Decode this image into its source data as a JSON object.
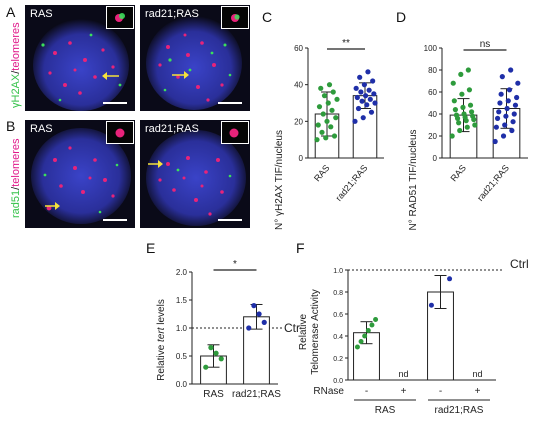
{
  "panels": {
    "A": "A",
    "B": "B",
    "C": "C",
    "D": "D",
    "E": "E",
    "F": "F"
  },
  "micro": {
    "rowA_label_a": "γH2AX",
    "rowA_label_sep": "/",
    "rowA_label_b": "telomeres",
    "rowB_label_a": "rad51",
    "rowB_label_sep": "/",
    "rowB_label_b": "telomeres",
    "left_title": "RAS",
    "right_title": "rad21;RAS"
  },
  "colors": {
    "green": "#2e9b3c",
    "blue": "#1f2fa8",
    "accent_green": "#35c24a",
    "accent_magenta": "#e0188a"
  },
  "chart_data": [
    {
      "panel": "C",
      "type": "bar",
      "categories": [
        "RAS",
        "rad21;RAS"
      ],
      "values": [
        24,
        34
      ],
      "error": [
        12,
        7
      ],
      "ylabel": "N° γH2AX TIF/nucleus",
      "ylim": [
        0,
        60
      ],
      "yticks": [
        "0",
        "20",
        "40",
        "60"
      ],
      "significance": "**",
      "series": [
        {
          "name": "RAS",
          "points": [
            10,
            11,
            12,
            14,
            17,
            18,
            20,
            22,
            24,
            26,
            28,
            30,
            32,
            34,
            36,
            38,
            40
          ]
        },
        {
          "name": "rad21;RAS",
          "points": [
            20,
            22,
            25,
            27,
            29,
            30,
            31,
            32,
            33,
            34,
            35,
            36,
            37,
            38,
            40,
            42,
            44,
            47
          ]
        }
      ]
    },
    {
      "panel": "D",
      "type": "bar",
      "categories": [
        "RAS",
        "rad21;RAS"
      ],
      "values": [
        39,
        45
      ],
      "error": [
        15,
        18
      ],
      "ylabel": "N° RAD51 TIF/nucleus",
      "ylim": [
        0,
        100
      ],
      "yticks": [
        "0",
        "20",
        "40",
        "60",
        "80",
        "100"
      ],
      "significance": "ns",
      "series": [
        {
          "name": "RAS",
          "points": [
            20,
            25,
            28,
            30,
            32,
            34,
            35,
            36,
            37,
            38,
            39,
            40,
            42,
            44,
            46,
            48,
            52,
            58,
            62,
            68,
            76,
            80
          ]
        },
        {
          "name": "rad21;RAS",
          "points": [
            15,
            20,
            25,
            28,
            30,
            33,
            36,
            38,
            40,
            42,
            45,
            48,
            50,
            52,
            55,
            58,
            62,
            68,
            74,
            80
          ]
        }
      ]
    },
    {
      "panel": "E",
      "type": "bar",
      "categories": [
        "RAS",
        "rad21;RAS"
      ],
      "values": [
        0.5,
        1.2
      ],
      "error": [
        0.2,
        0.22
      ],
      "ylabel_pre": "Relative ",
      "ylabel_em": "tert",
      "ylabel_post": " levels",
      "ylim": [
        0,
        2
      ],
      "yticks": [
        "0.0",
        "0.5",
        "1.0",
        "1.5",
        "2.0"
      ],
      "reference_line": 1.0,
      "reference_label": "Ctrl",
      "significance": "*",
      "series": [
        {
          "name": "RAS",
          "points": [
            0.3,
            0.45,
            0.55,
            0.65
          ]
        },
        {
          "name": "rad21;RAS",
          "points": [
            1.0,
            1.1,
            1.25,
            1.4
          ]
        }
      ]
    },
    {
      "panel": "F",
      "type": "bar",
      "categories": [
        "RAS -",
        "RAS +",
        "rad21;RAS -",
        "rad21;RAS +"
      ],
      "values": [
        0.43,
        null,
        0.8,
        null
      ],
      "error": [
        0.1,
        null,
        0.15,
        null
      ],
      "ylabel_line1": "Relative",
      "ylabel_line2": "Telomerase Activity",
      "ylim": [
        0,
        1.0
      ],
      "yticks": [
        "0.0",
        "0.2",
        "0.4",
        "0.6",
        "0.8",
        "1.0"
      ],
      "reference_line": 1.0,
      "reference_label": "Ctrl",
      "nd_label": "nd",
      "rnase_label": "RNase",
      "signs": [
        "-",
        "+",
        "-",
        "+"
      ],
      "group_labels": [
        "RAS",
        "rad21;RAS"
      ],
      "series": [
        {
          "name": "RAS",
          "points": [
            0.3,
            0.35,
            0.4,
            0.45,
            0.5,
            0.55
          ]
        },
        {
          "name": "rad21;RAS",
          "points": [
            0.68,
            0.92
          ]
        }
      ]
    }
  ]
}
